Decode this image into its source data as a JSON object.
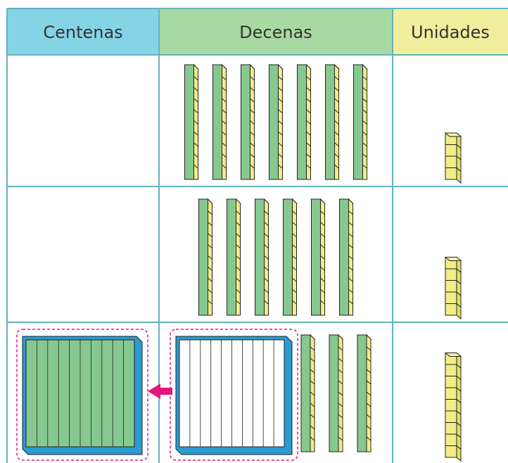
{
  "header": {
    "columns": [
      "Centenas",
      "Decenas",
      "Unidades"
    ]
  },
  "rows": [
    {
      "hundreds": 0,
      "grouped_tens": 0,
      "tens": 7,
      "units": 4
    },
    {
      "hundreds": 0,
      "grouped_tens": 0,
      "tens": 6,
      "units": 5
    },
    {
      "hundreds": 1,
      "grouped_tens": 10,
      "tens": 3,
      "units": 9
    }
  ]
}
